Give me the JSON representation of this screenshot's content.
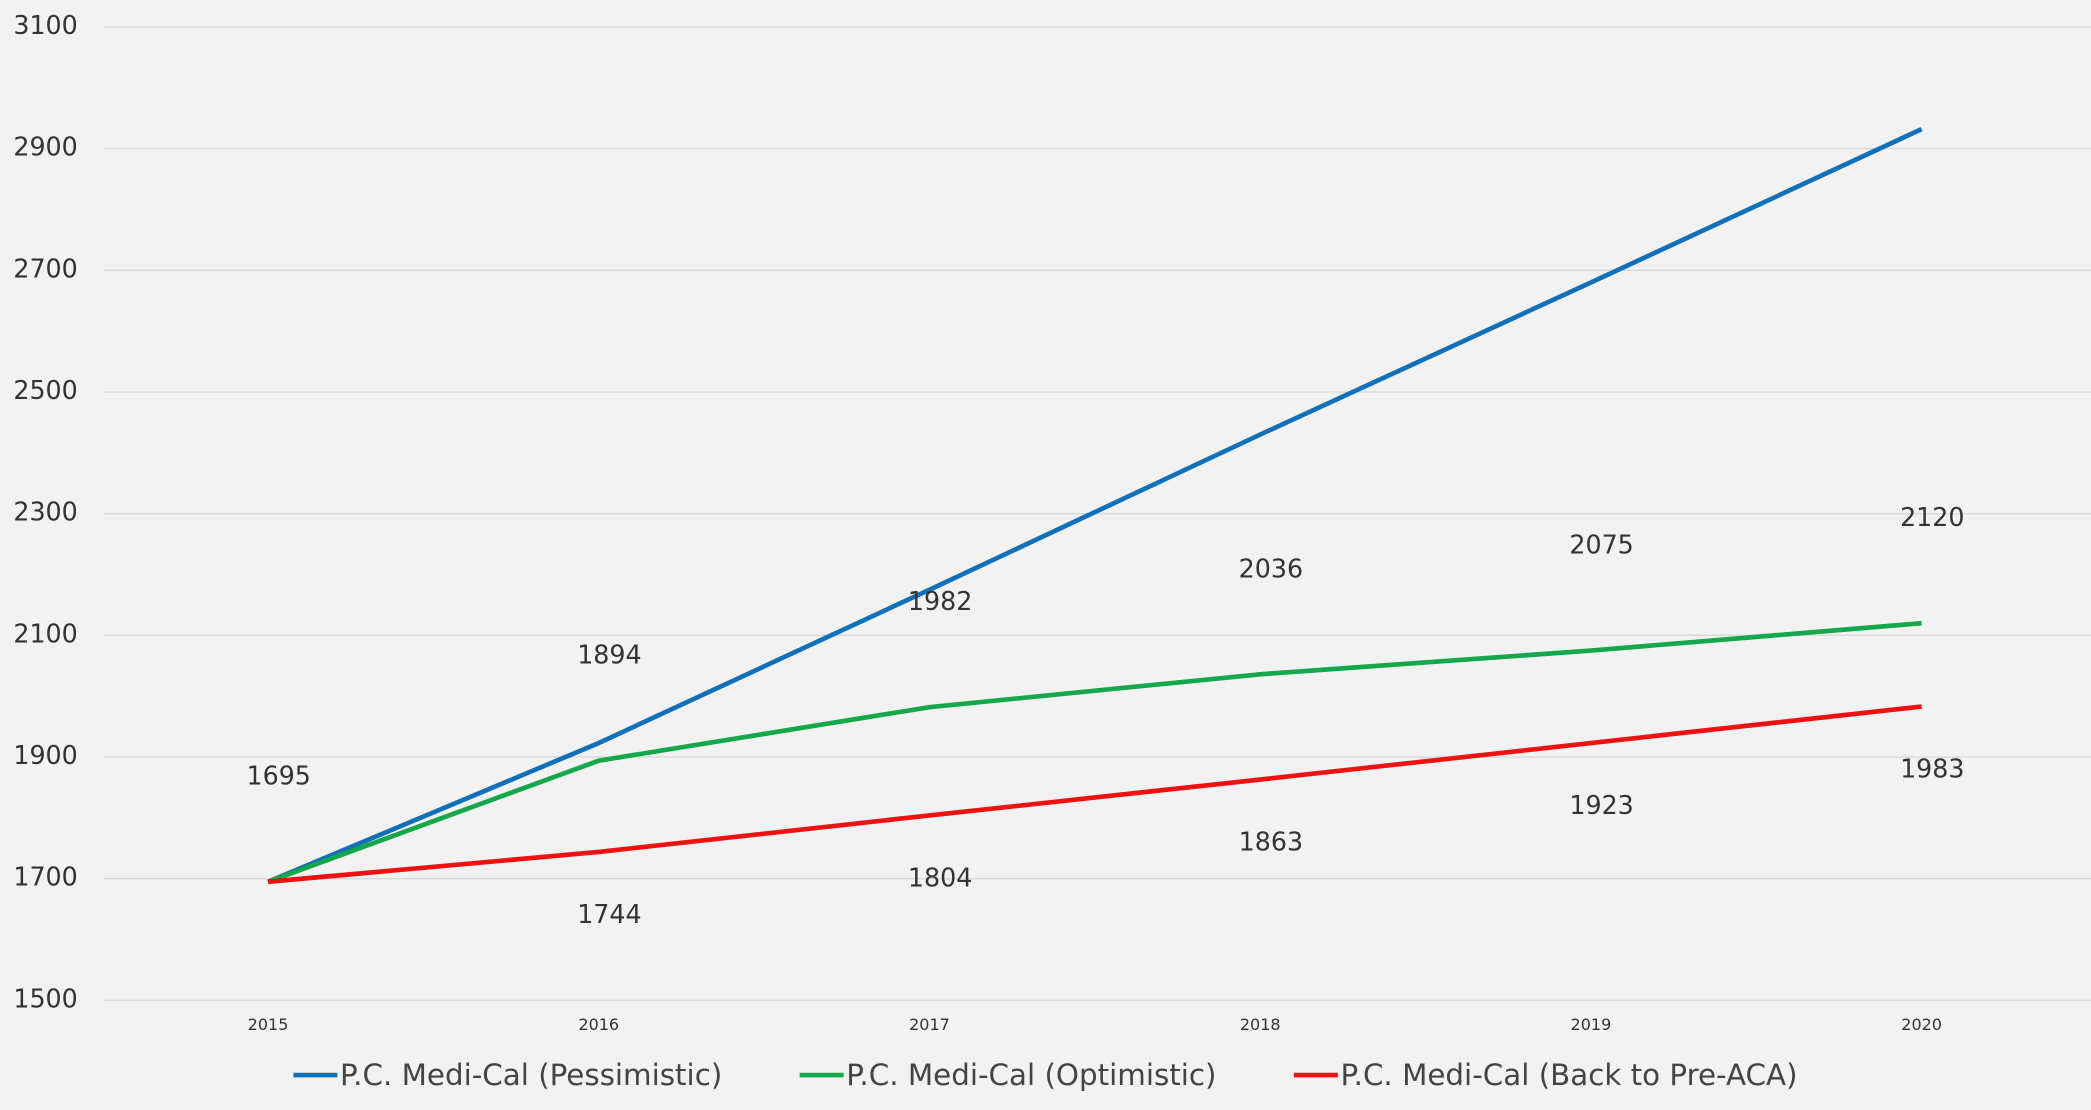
{
  "chart_data": {
    "type": "line",
    "categories": [
      "2015",
      "2016",
      "2017",
      "2018",
      "2019",
      "2020"
    ],
    "series": [
      {
        "name": "P.C. Medi-Cal (Pessimistic)",
        "color": "#1170b8",
        "values": [
          1695,
          1923,
          2175,
          2430,
          2680,
          2932
        ]
      },
      {
        "name": "P.C. Medi-Cal (Optimistic)",
        "color": "#14a84a",
        "values": [
          1695,
          1894,
          1982,
          2036,
          2075,
          2120
        ]
      },
      {
        "name": "P.C. Medi-Cal (Back to Pre-ACA)",
        "color": "#ee1111",
        "values": [
          1695,
          1744,
          1804,
          1863,
          1923,
          1983
        ]
      }
    ],
    "data_labels": [
      false,
      true,
      true
    ],
    "ylim": [
      1500,
      3100
    ],
    "yticks": [
      1500,
      1700,
      1900,
      2100,
      2300,
      2500,
      2700,
      2900,
      3100
    ],
    "grid": true,
    "legend": "bottom"
  }
}
